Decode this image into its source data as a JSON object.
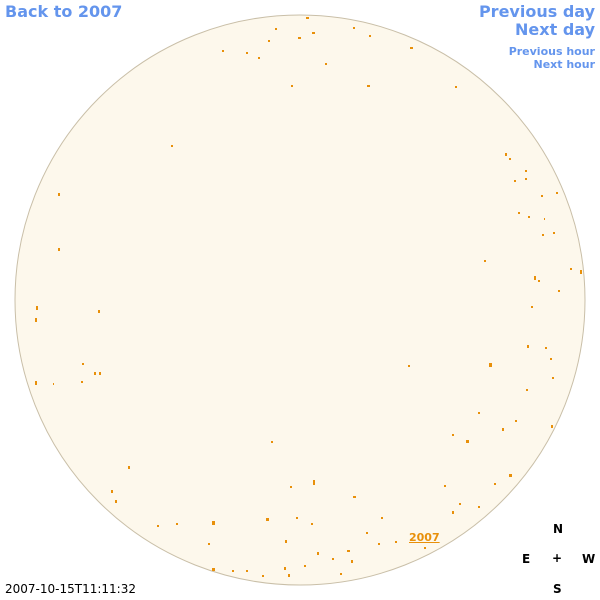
{
  "nav": {
    "back": "Back to 2007",
    "previous_day": "Previous day",
    "next_day": "Next day",
    "previous_hour": "Previous hour",
    "next_hour": "Next hour"
  },
  "timestamp": "2007-10-15T11:11:32",
  "marker_label": "2007",
  "compass": {
    "north": "N",
    "east": "E",
    "center": "+",
    "west": "W",
    "south": "S"
  }
}
